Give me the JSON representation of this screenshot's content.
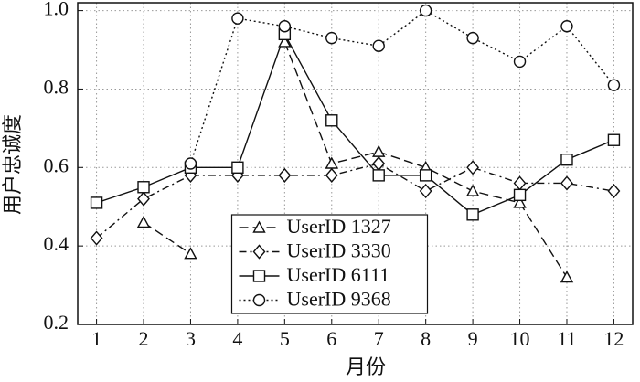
{
  "chart_data": {
    "type": "line",
    "xlabel": "月份",
    "ylabel": "用户忠诚度",
    "x": [
      1,
      2,
      3,
      4,
      5,
      6,
      7,
      8,
      9,
      10,
      11,
      12
    ],
    "xlim": [
      0.6,
      12.4
    ],
    "xticks": [
      1,
      2,
      3,
      4,
      5,
      6,
      7,
      8,
      9,
      10,
      11,
      12
    ],
    "ylim": [
      0.2,
      1.02
    ],
    "yticks": [
      0.2,
      0.4,
      0.6,
      0.8,
      {
        "value": 1,
        "label": "1.0"
      }
    ],
    "grid": true,
    "legend": "bottom-center",
    "series": [
      {
        "name": "UserID 1327",
        "color": "#111111",
        "marker": "triangle",
        "linestyle": "dashed",
        "values": [
          null,
          0.46,
          0.38,
          null,
          0.92,
          0.61,
          0.64,
          0.6,
          0.54,
          0.51,
          0.32,
          null
        ]
      },
      {
        "name": "UserID 3330",
        "color": "#111111",
        "marker": "diamond",
        "linestyle": "dashdot",
        "values": [
          0.42,
          0.52,
          0.58,
          0.58,
          0.58,
          0.58,
          0.61,
          0.54,
          0.6,
          0.56,
          0.56,
          0.54
        ]
      },
      {
        "name": "UserID 6111",
        "color": "#111111",
        "marker": "square",
        "linestyle": "solid",
        "values": [
          0.51,
          0.55,
          0.6,
          0.6,
          0.94,
          0.72,
          0.58,
          0.58,
          0.48,
          0.53,
          0.62,
          0.67
        ]
      },
      {
        "name": "UserID 9368",
        "color": "#111111",
        "marker": "circle",
        "linestyle": "dotted",
        "values": [
          null,
          null,
          0.61,
          0.98,
          0.96,
          0.93,
          0.91,
          1.0,
          0.93,
          0.87,
          0.96,
          0.81
        ]
      }
    ]
  }
}
